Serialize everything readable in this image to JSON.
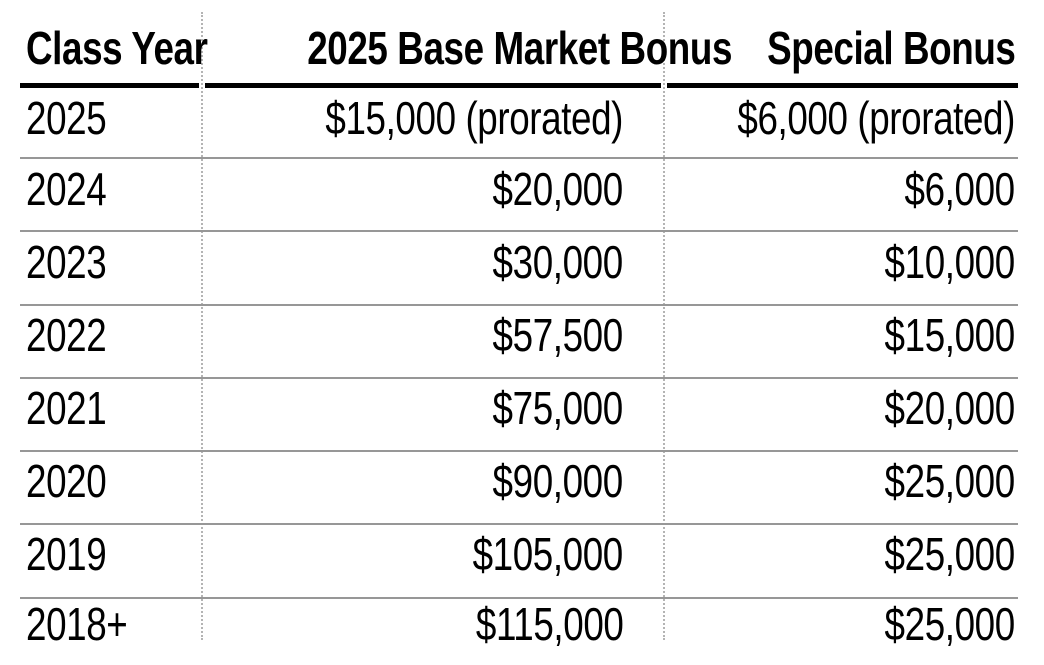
{
  "chart_data": {
    "type": "table",
    "columns": [
      "Class Year",
      "2025 Base Market Bonus",
      "Special Bonus"
    ],
    "rows": [
      {
        "class_year": "2025",
        "base_market_bonus": "$15,000 (prorated)",
        "special_bonus": "$6,000 (prorated)"
      },
      {
        "class_year": "2024",
        "base_market_bonus": "$20,000",
        "special_bonus": "$6,000"
      },
      {
        "class_year": "2023",
        "base_market_bonus": "$30,000",
        "special_bonus": "$10,000"
      },
      {
        "class_year": "2022",
        "base_market_bonus": "$57,500",
        "special_bonus": "$15,000"
      },
      {
        "class_year": "2021",
        "base_market_bonus": "$75,000",
        "special_bonus": "$20,000"
      },
      {
        "class_year": "2020",
        "base_market_bonus": "$90,000",
        "special_bonus": "$25,000"
      },
      {
        "class_year": "2019",
        "base_market_bonus": "$105,000",
        "special_bonus": "$25,000"
      },
      {
        "class_year": "2018+",
        "base_market_bonus": "$115,000",
        "special_bonus": "$25,000"
      }
    ],
    "layout": {
      "column_alignments": [
        "left",
        "right",
        "right"
      ],
      "header_rule": "thick solid, gapped at column dividers",
      "row_rules": "thin solid gray between rows",
      "column_dividers": "fine dotted vertical lines",
      "legend_position": "none",
      "grid": "rules-only"
    }
  },
  "colors": {
    "text": "#000000",
    "header_rule": "#000000",
    "row_rule": "#979797",
    "column_divider": "#b4b4b4",
    "background": "#ffffff"
  }
}
